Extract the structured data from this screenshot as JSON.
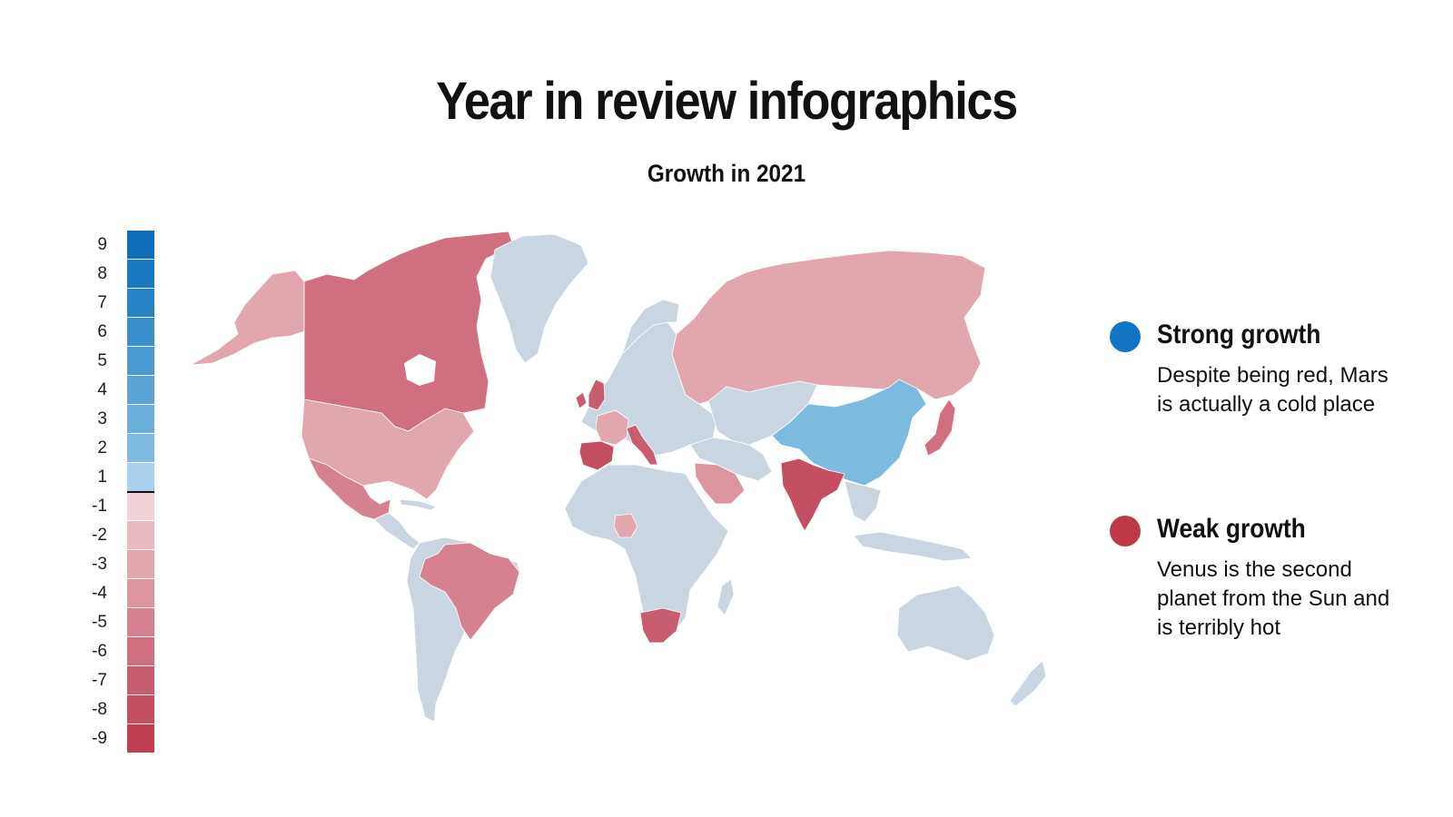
{
  "title": "Year in review infographics",
  "subtitle": "Growth in 2021",
  "colors": {
    "strong": "#1274c4",
    "weak": "#c0394a",
    "neutral": "#c9d6e1",
    "background": "#ffffff"
  },
  "scale": {
    "labels": [
      "9",
      "8",
      "7",
      "6",
      "5",
      "4",
      "3",
      "2",
      "1",
      "-1",
      "-2",
      "-3",
      "-4",
      "-5",
      "-6",
      "-7",
      "-8",
      "-9"
    ],
    "colors": [
      "#0e6fb8",
      "#1a78c0",
      "#2883c6",
      "#3a8fcc",
      "#4a99d1",
      "#5ba4d6",
      "#6bafdb",
      "#7dbae0",
      "#a9d1ee",
      "#f0d3d6",
      "#e8b9bf",
      "#e2a6ae",
      "#dc959f",
      "#d58190",
      "#cf6f80",
      "#c95d70",
      "#c44e62",
      "#c13e52"
    ]
  },
  "legend": [
    {
      "key": "strong",
      "title": "Strong growth",
      "description": "Despite being red, Mars is actually a cold place"
    },
    {
      "key": "weak",
      "title": "Weak growth",
      "description": "Venus is the second planet from the Sun and is terribly hot"
    }
  ],
  "regions": [
    {
      "name": "Alaska",
      "value": -3
    },
    {
      "name": "Canada",
      "value": -6
    },
    {
      "name": "Greenland",
      "value": null
    },
    {
      "name": "United States",
      "value": -3
    },
    {
      "name": "Mexico",
      "value": -5
    },
    {
      "name": "Central America",
      "value": null
    },
    {
      "name": "Brazil",
      "value": -5
    },
    {
      "name": "South America",
      "value": null
    },
    {
      "name": "United Kingdom",
      "value": -7
    },
    {
      "name": "France",
      "value": -3
    },
    {
      "name": "Spain",
      "value": -8
    },
    {
      "name": "Italy",
      "value": -7
    },
    {
      "name": "Europe",
      "value": null
    },
    {
      "name": "Russia",
      "value": -3
    },
    {
      "name": "Africa",
      "value": null
    },
    {
      "name": "Nigeria",
      "value": -3
    },
    {
      "name": "South Africa",
      "value": -7
    },
    {
      "name": "Saudi Arabia",
      "value": -4
    },
    {
      "name": "Middle East",
      "value": null
    },
    {
      "name": "Central Asia",
      "value": null
    },
    {
      "name": "China",
      "value": 2
    },
    {
      "name": "India",
      "value": -8
    },
    {
      "name": "Southeast Asia",
      "value": null
    },
    {
      "name": "Japan",
      "value": -6
    },
    {
      "name": "Indonesia",
      "value": null
    },
    {
      "name": "Australia",
      "value": null
    },
    {
      "name": "New Zealand",
      "value": null
    },
    {
      "name": "Madagascar",
      "value": null
    }
  ]
}
